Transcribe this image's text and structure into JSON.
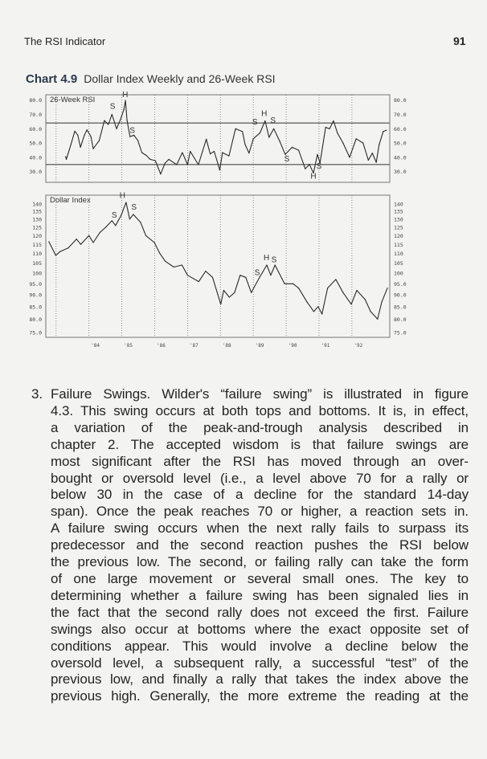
{
  "header": {
    "running_head": "The RSI Indicator",
    "page_number": "91"
  },
  "caption": {
    "label": "Chart 4.9",
    "title": "Dollar Index Weekly and 26-Week RSI"
  },
  "chart_data": [
    {
      "type": "line",
      "title": "26-Week RSI",
      "xlim": [
        1982.7,
        1993.15
      ],
      "ylim": [
        24,
        82
      ],
      "yticks": [
        80,
        70,
        60,
        50,
        40,
        30
      ],
      "ytick_labels": [
        "80.0",
        "70.0",
        "60.0",
        "50.0",
        "40.0",
        "30.0"
      ],
      "reference_lines": [
        64,
        35
      ],
      "vertical_grid": "dotted, yearly",
      "x": [
        1983.29,
        1983.31,
        1983.45,
        1983.57,
        1983.66,
        1983.74,
        1983.86,
        1983.94,
        1984.06,
        1984.13,
        1984.31,
        1984.47,
        1984.59,
        1984.7,
        1984.84,
        1984.96,
        1985.06,
        1985.11,
        1985.16,
        1985.25,
        1985.37,
        1985.49,
        1985.61,
        1985.74,
        1985.86,
        1986.02,
        1986.18,
        1986.31,
        1986.43,
        1986.67,
        1986.84,
        1987.0,
        1987.08,
        1987.33,
        1987.57,
        1987.69,
        1987.81,
        1987.98,
        1988.06,
        1988.26,
        1988.46,
        1988.67,
        1988.75,
        1988.87,
        1989.0,
        1989.2,
        1989.36,
        1989.48,
        1989.62,
        1989.81,
        1989.97,
        1990.18,
        1990.38,
        1990.58,
        1990.71,
        1990.83,
        1990.95,
        1991.03,
        1991.2,
        1991.32,
        1991.44,
        1991.56,
        1991.73,
        1991.93,
        1992.13,
        1992.34,
        1992.5,
        1992.62,
        1992.74,
        1992.83,
        1992.95,
        1993.05
      ],
      "y": [
        40.5,
        38.6,
        48.9,
        58.3,
        55.5,
        47,
        55.5,
        59.2,
        54.5,
        46,
        51.7,
        65.8,
        63,
        70,
        60,
        66.7,
        73.3,
        79.8,
        65.8,
        54.5,
        55.5,
        51.7,
        43.3,
        41.4,
        38.6,
        37.7,
        28.3,
        35.8,
        38.6,
        34.9,
        43.3,
        34.9,
        44.2,
        34.9,
        52.7,
        42.4,
        44.2,
        31.1,
        43.3,
        41,
        60,
        58,
        49,
        43,
        53,
        57,
        65.5,
        54,
        60,
        51,
        42,
        47,
        45,
        32,
        35,
        29,
        42,
        36,
        61,
        60,
        65.5,
        57,
        50,
        40,
        53,
        50,
        38,
        43,
        36.5,
        49,
        58,
        59
      ],
      "annotations": [
        {
          "text": "S",
          "x": 1984.72,
          "y": 74
        },
        {
          "text": "H",
          "x": 1985.1,
          "y": 82
        },
        {
          "text": "S",
          "x": 1985.32,
          "y": 57
        },
        {
          "text": "S",
          "x": 1989.05,
          "y": 63
        },
        {
          "text": "H",
          "x": 1989.33,
          "y": 69
        },
        {
          "text": "S",
          "x": 1989.6,
          "y": 64
        },
        {
          "text": "S",
          "x": 1990.02,
          "y": 37
        },
        {
          "text": "H",
          "x": 1990.83,
          "y": 25
        },
        {
          "text": "S",
          "x": 1991.0,
          "y": 32
        }
      ]
    },
    {
      "type": "line",
      "title": "Dollar Index",
      "yscale": "log",
      "xlim": [
        1982.7,
        1993.15
      ],
      "ylim": [
        73,
        146
      ],
      "yticks": [
        140,
        135,
        130,
        125,
        120,
        115,
        110,
        105,
        100,
        95,
        90,
        85,
        80,
        75
      ],
      "ytick_labels": [
        "140",
        "135",
        "130",
        "125",
        "120",
        "115",
        "110",
        "105",
        "100",
        "95.0",
        "90.0",
        "85.0",
        "80.0",
        "75.0"
      ],
      "xticks": [
        1984,
        1985,
        1986,
        1987,
        1988,
        1989,
        1990,
        1991,
        1992
      ],
      "xtick_labels": [
        "'84",
        "'85",
        "'86",
        "'87",
        "'88",
        "'89",
        "'90",
        "'91",
        "'92"
      ],
      "vertical_grid_years": [
        1983,
        1984,
        1985,
        1986,
        1987,
        1988,
        1989,
        1990,
        1991,
        1992
      ],
      "x": [
        1982.78,
        1982.99,
        1983.12,
        1983.37,
        1983.62,
        1983.75,
        1984.0,
        1984.13,
        1984.34,
        1984.51,
        1984.7,
        1984.81,
        1984.97,
        1985.13,
        1985.24,
        1985.35,
        1985.57,
        1985.73,
        1985.99,
        1986.16,
        1986.32,
        1986.58,
        1986.83,
        1987.0,
        1987.34,
        1987.55,
        1987.76,
        1988.01,
        1988.1,
        1988.27,
        1988.43,
        1988.6,
        1988.77,
        1988.94,
        1989.19,
        1989.41,
        1989.53,
        1989.66,
        1989.95,
        1990.21,
        1990.38,
        1990.63,
        1990.84,
        1990.97,
        1991.09,
        1991.26,
        1991.51,
        1991.73,
        1991.98,
        1992.15,
        1992.4,
        1992.57,
        1992.78,
        1992.91,
        1993.08
      ],
      "y": [
        116.5,
        109,
        111,
        113,
        118,
        115,
        120,
        116,
        122,
        125,
        129,
        126,
        132,
        141,
        130,
        133,
        128,
        120,
        116,
        110,
        106,
        103,
        104,
        99,
        96,
        101,
        98,
        86,
        92,
        89,
        91,
        99,
        98,
        91,
        98,
        104,
        99,
        104,
        95,
        95,
        93,
        87,
        83,
        85,
        82,
        93,
        97,
        91,
        86,
        92,
        88,
        83,
        80,
        87,
        93
      ],
      "annotations": [
        {
          "text": "S",
          "x": 1984.77,
          "y": 131
        },
        {
          "text": "H",
          "x": 1985.02,
          "y": 144
        },
        {
          "text": "S",
          "x": 1985.37,
          "y": 136
        },
        {
          "text": "S",
          "x": 1989.12,
          "y": 99
        },
        {
          "text": "H",
          "x": 1989.4,
          "y": 106.5
        },
        {
          "text": "S",
          "x": 1989.63,
          "y": 105.5
        }
      ]
    }
  ],
  "body": {
    "item_number": "3.",
    "lines": [
      "Failure Swings. Wilder's “failure swing” is illustrated in figure",
      "4.3. This swing occurs at both tops and bottoms. It is, in effect,",
      "a variation of the peak-and-trough analysis described in",
      "chapter 2. The accepted wisdom is that failure swings are",
      "most significant after the RSI has moved through an over-",
      "bought or oversold level (i.e., a level above 70 for a rally or",
      "below 30 in the case of a decline for the standard 14-day",
      "span). Once the peak reaches 70 or higher, a reaction sets in.",
      "A failure swing occurs when the next rally fails to surpass its",
      "predecessor and the second reaction pushes the RSI below",
      "the previous low. The second, or failing rally can take the form",
      "of one large movement or several small ones. The key to",
      "determining whether a failure swing has been signaled lies in",
      "the fact that the second rally does not exceed the first. Failure",
      "swings also occur at bottoms where the exact opposite set of",
      "conditions appear. This would involve a decline below the",
      "oversold level, a subsequent rally, a successful “test” of the",
      "previous low, and finally a rally that takes the index above the",
      "previous high. Generally, the more extreme the reading at the"
    ]
  }
}
